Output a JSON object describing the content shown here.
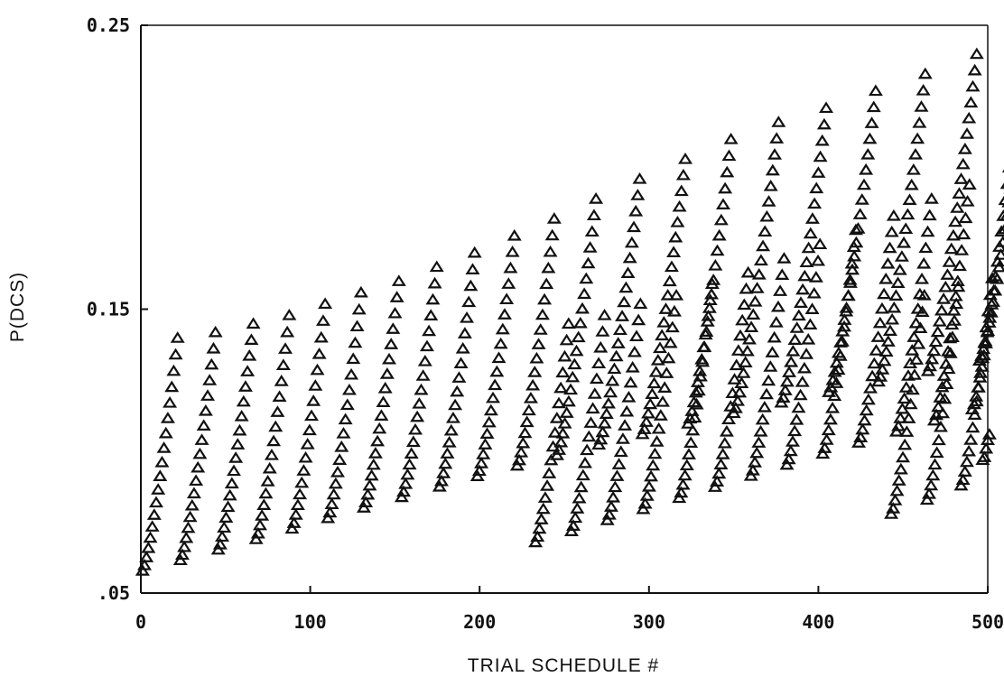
{
  "chart_data": {
    "type": "scatter",
    "title": "",
    "xlabel": "TRIAL SCHEDULE #",
    "ylabel": "P(DCS)",
    "xlim": [
      0,
      500
    ],
    "ylim": [
      0.05,
      0.25
    ],
    "x_ticks": [
      0,
      100,
      200,
      300,
      400,
      500
    ],
    "x_tick_labels": [
      "0",
      "100",
      "200",
      "300",
      "400",
      "500"
    ],
    "y_ticks": [
      0.05,
      0.15,
      0.25
    ],
    "y_tick_labels": [
      ".05",
      "0.15",
      "0.25"
    ],
    "grid": false,
    "legend": "none",
    "marker": "open-triangle",
    "curve_groups": [
      {
        "x_start": 1,
        "x_step": 1.15,
        "y_start": 0.058,
        "y_end": [
          0.14,
          0.142,
          0.145,
          0.148,
          0.152,
          0.156,
          0.16,
          0.165,
          0.17,
          0.176,
          0.182,
          0.189,
          0.196,
          0.203,
          0.21,
          0.216,
          0.221,
          0.227,
          0.233,
          0.24,
          0.246
        ],
        "y_start_step": 0.0037
      },
      {
        "x_start": 233,
        "x_step": 1.15,
        "y_start": 0.068,
        "y_end": [
          0.145,
          0.148,
          0.152,
          0.155,
          0.159,
          0.163,
          0.168,
          0.173,
          0.178,
          0.183,
          0.189,
          0.194,
          0.2,
          0.206,
          0.213,
          0.22,
          0.227,
          0.234,
          0.241,
          0.247
        ],
        "y_start_step": 0.0039
      },
      {
        "x_start": 443,
        "x_step": 1.15,
        "y_start": 0.078,
        "y_end": [
          0.155,
          0.158,
          0.161
        ],
        "y_start_step": 0.005
      }
    ],
    "trailing_points": [
      {
        "x": 497,
        "y": 0.097
      },
      {
        "x": 498,
        "y": 0.098
      },
      {
        "x": 499,
        "y": 0.101
      },
      {
        "x": 500,
        "y": 0.104
      },
      {
        "x": 501,
        "y": 0.106
      }
    ]
  }
}
